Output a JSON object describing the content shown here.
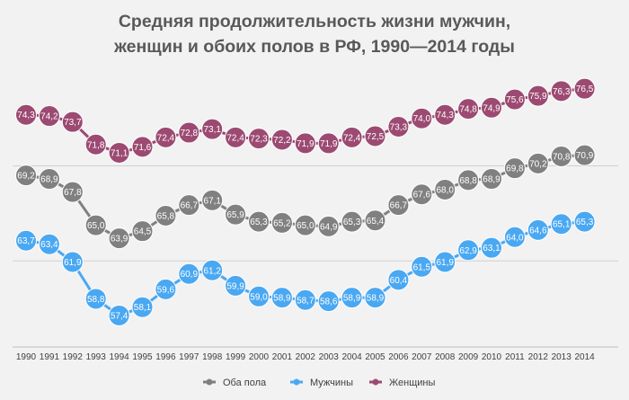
{
  "chart_data": {
    "type": "line",
    "title_lines": [
      "Средняя продолжительность жизни мужчин,",
      "женщин и обоих полов в РФ, 1990—2014 годы"
    ],
    "xlabel": "",
    "ylabel": "",
    "ylim": [
      55,
      78
    ],
    "grid": true,
    "legend_position": "bottom",
    "categories": [
      "1990",
      "1991",
      "1992",
      "1993",
      "1994",
      "1995",
      "1996",
      "1997",
      "1998",
      "1999",
      "2000",
      "2001",
      "2002",
      "2003",
      "2004",
      "2005",
      "2006",
      "2007",
      "2008",
      "2009",
      "2010",
      "2011",
      "2012",
      "2013",
      "2014"
    ],
    "series": [
      {
        "name": "Оба пола",
        "color": "#808080",
        "values": [
          69.2,
          68.9,
          67.8,
          65.0,
          63.9,
          64.5,
          65.8,
          66.7,
          67.1,
          65.9,
          65.3,
          65.2,
          65.0,
          64.9,
          65.3,
          65.4,
          66.7,
          67.6,
          68.0,
          68.8,
          68.9,
          69.8,
          70.2,
          70.8,
          70.9
        ],
        "labels": [
          "69,2",
          "68,9",
          "67,8",
          "65,0",
          "63,9",
          "64,5",
          "65,8",
          "66,7",
          "67,1",
          "65,9",
          "65,3",
          "65,2",
          "65,0",
          "64,9",
          "65,3",
          "65,4",
          "66,7",
          "67,6",
          "68,0",
          "68,8",
          "68,9",
          "69,8",
          "70,2",
          "70,8",
          "70,9"
        ]
      },
      {
        "name": "Мужчины",
        "color": "#4aa8f2",
        "values": [
          63.7,
          63.4,
          61.9,
          58.8,
          57.4,
          58.1,
          59.6,
          60.9,
          61.2,
          59.9,
          59.0,
          58.9,
          58.7,
          58.6,
          58.9,
          58.9,
          60.4,
          61.5,
          61.9,
          62.9,
          63.1,
          64.0,
          64.6,
          65.1,
          65.3
        ],
        "labels": [
          "63,7",
          "63,4",
          "61,9",
          "58,8",
          "57,4",
          "58,1",
          "59,6",
          "60,9",
          "61,2",
          "59,9",
          "59,0",
          "58,9",
          "58,7",
          "58,6",
          "58,9",
          "58,9",
          "60,4",
          "61,5",
          "61,9",
          "62,9",
          "63,1",
          "64,0",
          "64,6",
          "65,1",
          "65,3"
        ]
      },
      {
        "name": "Женщины",
        "color": "#9c4a72",
        "values": [
          74.3,
          74.2,
          73.7,
          71.8,
          71.1,
          71.6,
          72.4,
          72.8,
          73.1,
          72.4,
          72.3,
          72.2,
          71.9,
          71.9,
          72.4,
          72.5,
          73.3,
          74.0,
          74.3,
          74.8,
          74.9,
          75.6,
          75.9,
          76.3,
          76.5
        ],
        "labels": [
          "74,3",
          "74,2",
          "73,7",
          "71,8",
          "71,1",
          "71,6",
          "72,4",
          "72,8",
          "73,1",
          "72,4",
          "72,3",
          "72,2",
          "71,9",
          "71,9",
          "72,4",
          "72,5",
          "73,3",
          "74,0",
          "74,3",
          "74,8",
          "74,9",
          "75,6",
          "75,9",
          "76,3",
          "76,5"
        ]
      }
    ]
  }
}
